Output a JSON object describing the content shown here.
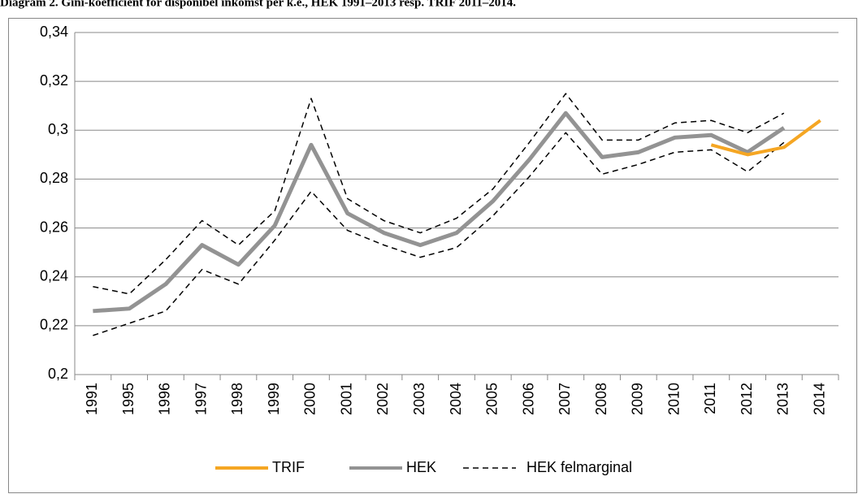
{
  "chart_data": {
    "type": "line",
    "title": "Diagram 2. Gini-koefficient för disponibel inkomst per k.e., HEK 1991–2013 resp. TRIF 2011–2014.",
    "categories": [
      "1991",
      "1995",
      "1996",
      "1997",
      "1998",
      "1999",
      "2000",
      "2001",
      "2002",
      "2003",
      "2004",
      "2005",
      "2006",
      "2007",
      "2008",
      "2009",
      "2010",
      "2011",
      "2012",
      "2013",
      "2014"
    ],
    "ylim": [
      0.2,
      0.34
    ],
    "yticks": [
      {
        "value": 0.2,
        "label": "0,2"
      },
      {
        "value": 0.22,
        "label": "0,22"
      },
      {
        "value": 0.24,
        "label": "0,24"
      },
      {
        "value": 0.26,
        "label": "0,26"
      },
      {
        "value": 0.28,
        "label": "0,28"
      },
      {
        "value": 0.3,
        "label": "0,3"
      },
      {
        "value": 0.32,
        "label": "0,32"
      },
      {
        "value": 0.34,
        "label": "0,34"
      }
    ],
    "grid": true,
    "legend": "bottom",
    "series": [
      {
        "name": "TRIF",
        "color": "#f5a623",
        "values": [
          null,
          null,
          null,
          null,
          null,
          null,
          null,
          null,
          null,
          null,
          null,
          null,
          null,
          null,
          null,
          null,
          null,
          0.294,
          0.29,
          0.293,
          0.304
        ]
      },
      {
        "name": "HEK",
        "color": "#939393",
        "values": [
          0.226,
          0.227,
          0.237,
          0.253,
          0.245,
          0.261,
          0.294,
          0.266,
          0.258,
          0.253,
          0.258,
          0.271,
          0.288,
          0.307,
          0.289,
          0.291,
          0.297,
          0.298,
          0.291,
          0.301,
          null
        ]
      },
      {
        "name": "HEK felmarginal",
        "color": "#000000",
        "dashed": true,
        "upper": [
          0.236,
          0.233,
          0.247,
          0.263,
          0.253,
          0.267,
          0.313,
          0.272,
          0.263,
          0.258,
          0.264,
          0.276,
          0.295,
          0.315,
          0.296,
          0.296,
          0.303,
          0.304,
          0.299,
          0.307,
          null
        ],
        "lower": [
          0.216,
          0.221,
          0.226,
          0.243,
          0.237,
          0.255,
          0.275,
          0.259,
          0.253,
          0.248,
          0.252,
          0.265,
          0.281,
          0.299,
          0.282,
          0.286,
          0.291,
          0.292,
          0.283,
          0.295,
          null
        ]
      }
    ]
  }
}
